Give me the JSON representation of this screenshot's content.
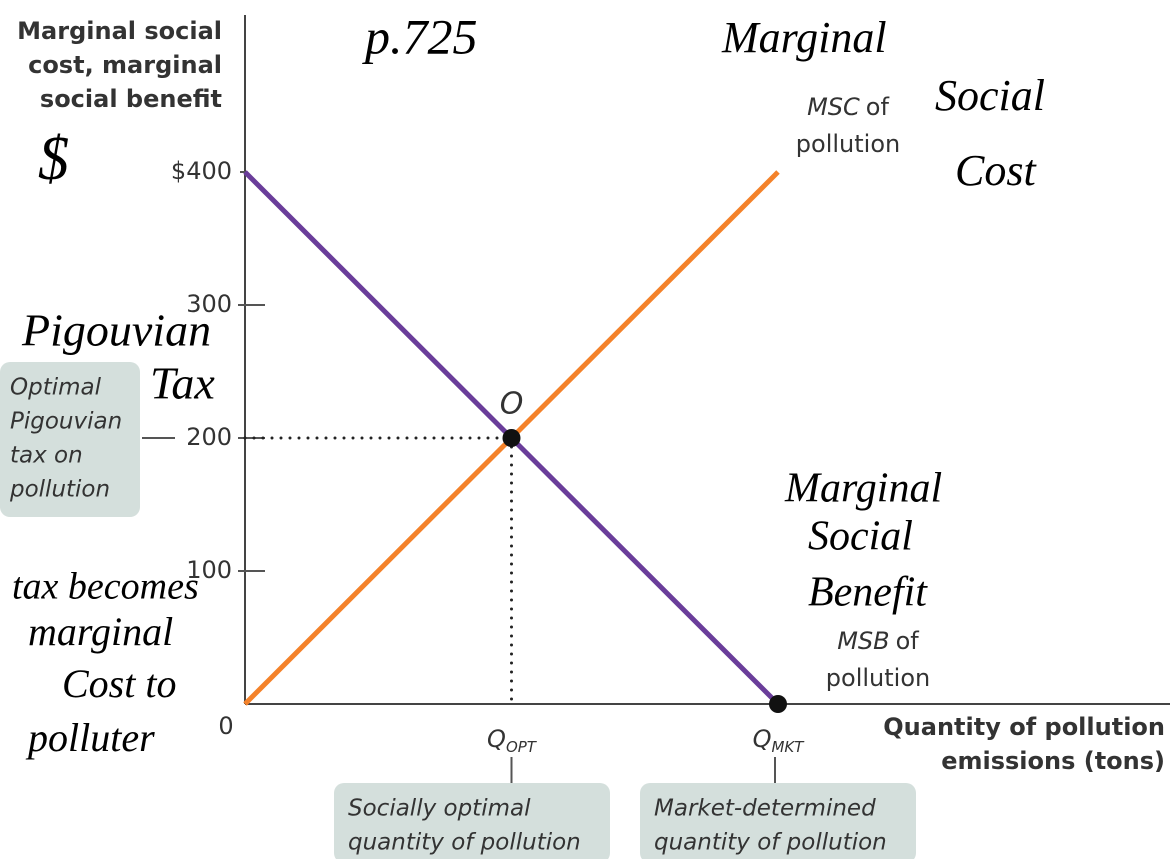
{
  "chart_data": {
    "type": "line",
    "y_label": [
      "Marginal social",
      "cost, marginal",
      "social benefit"
    ],
    "x_label": [
      "Quantity of pollution",
      "emissions (tons)"
    ],
    "categories": [
      {
        "label": "0"
      },
      {
        "label": "Q",
        "sub": "OPT"
      },
      {
        "label": "Q",
        "sub": "MKT"
      }
    ],
    "series": [
      {
        "name": [
          "MSC",
          "of",
          "pollution"
        ],
        "color": "#f4822a",
        "values": [
          0,
          200,
          400
        ]
      },
      {
        "name": [
          "MSB",
          "of",
          "pollution"
        ],
        "color": "#6a3d9a",
        "values": [
          400,
          200,
          0
        ]
      }
    ],
    "ylim": [
      0,
      400
    ],
    "yticks": [
      100,
      200,
      300,
      {
        "value": 400,
        "label": "$400"
      }
    ],
    "points": [
      {
        "label": "O",
        "category": 1,
        "value": 200
      },
      {
        "category": 2,
        "value": 0
      }
    ],
    "boxes": [
      [
        "Optimal",
        "Pigouvian",
        "tax on",
        "pollution"
      ],
      [
        "Socially optimal",
        "quantity of pollution"
      ],
      [
        "Market-determined",
        "quantity of pollution"
      ]
    ],
    "handwriting": [
      [
        "p.725"
      ],
      [
        "Marginal",
        "Social",
        "Cost"
      ],
      [
        "$"
      ],
      [
        "Pigouvian",
        "Tax"
      ],
      [
        "Marginal",
        "Social",
        "Benefit"
      ],
      [
        "tax becomes",
        "marginal",
        "Cost to",
        "polluter"
      ]
    ]
  }
}
